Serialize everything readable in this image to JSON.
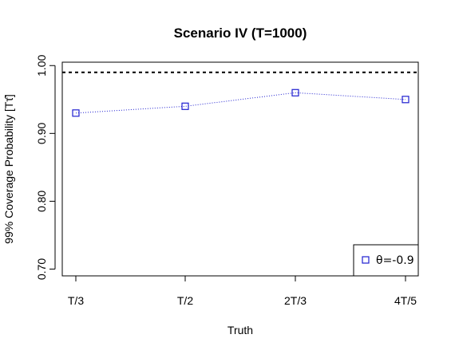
{
  "chart_data": {
    "type": "line",
    "title": "Scenario IV (T=1000)",
    "xlabel": "Truth",
    "ylabel": "99% Coverage Probability [Tτ̂]",
    "categories": [
      "T/3",
      "T/2",
      "2T/3",
      "4T/5"
    ],
    "y_ticks": [
      "0.70",
      "0.80",
      "0.90",
      "1.00"
    ],
    "ylim": [
      0.69,
      1.005
    ],
    "series": [
      {
        "name": "θ=-0.9",
        "values": [
          0.93,
          0.94,
          0.96,
          0.95
        ],
        "color": "#1f1fd0",
        "marker": "open-square",
        "line_style": "dotted"
      }
    ],
    "reference_line": {
      "value": 0.99,
      "style": "dashed",
      "color": "#000000"
    },
    "legend_position": "bottom-right",
    "grid": false
  }
}
